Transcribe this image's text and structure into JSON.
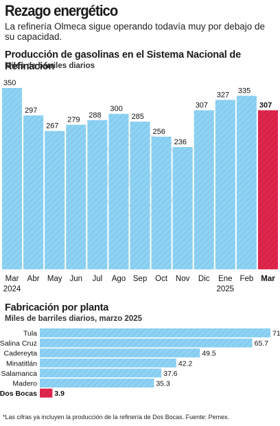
{
  "header": {
    "title": "Rezago energético",
    "subtitle": "La refinería Olmeca sigue operando todavía muy por debajo de su capacidad."
  },
  "section1": {
    "title": "Producción de gasolinas en el Sistema Nacional de Refinación",
    "units": "Miles de barriles diarios"
  },
  "section2": {
    "title": "Fabricación por planta",
    "units": "Miles de  barriles diarios, marzo 2025"
  },
  "footnote": "*Las cifras ya incluyen la producción de la refinería de Dos Bocas. Fuente: Pemex.",
  "colors": {
    "bar": "#8fd3f4",
    "bar_stripe": "#6cb6dc",
    "highlight": "#e0264c",
    "highlight_stripe": "#b81a3a"
  },
  "chart_data": [
    {
      "type": "bar",
      "categories": [
        "Mar",
        "Abr",
        "May",
        "Jun",
        "Jul",
        "Ago",
        "Sep",
        "Oct",
        "Nov",
        "Dic",
        "Ene",
        "Feb",
        "Mar"
      ],
      "year_labels": [
        "2024",
        "",
        "",
        "",
        "",
        "",
        "",
        "",
        "",
        "",
        "2025",
        "",
        ""
      ],
      "values": [
        350,
        297,
        267,
        279,
        288,
        300,
        285,
        256,
        236,
        307,
        327,
        335,
        307
      ],
      "highlight_index": 12,
      "ylim": [
        0,
        350
      ],
      "grid": false
    },
    {
      "type": "bar",
      "orientation": "horizontal",
      "categories": [
        "Tula",
        "Salina Cruz",
        "Cadereyta",
        "Minatitlán",
        "Salamanca",
        "Madero",
        "Dos Bocas"
      ],
      "values": [
        71.3,
        65.7,
        49.5,
        42.2,
        37.6,
        35.3,
        3.9
      ],
      "value_labels": [
        "71.3",
        "65.7",
        "49.5",
        "42.2",
        "37.6",
        "35.3",
        "3.9"
      ],
      "highlight_index": 6,
      "xlim": [
        0,
        71.3
      ],
      "grid": false
    }
  ]
}
